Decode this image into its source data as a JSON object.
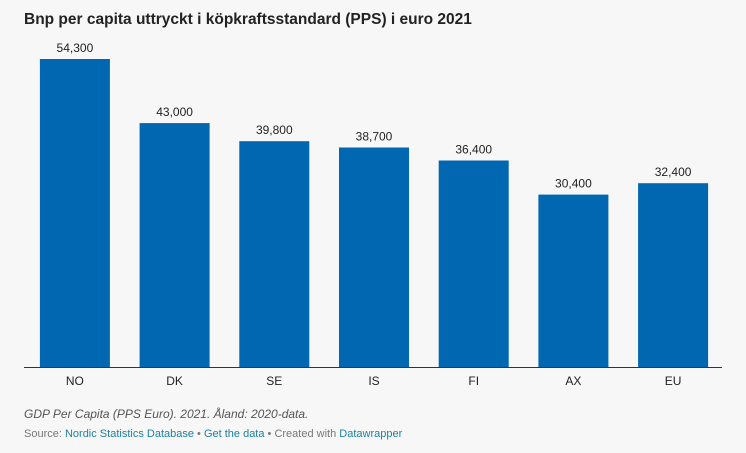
{
  "chart_data": {
    "type": "bar",
    "title": "Bnp per capita uttryckt i köpkraftsstandard (PPS) i euro 2021",
    "categories": [
      "NO",
      "DK",
      "SE",
      "IS",
      "FI",
      "AX",
      "EU"
    ],
    "values": [
      54300,
      43000,
      39800,
      38700,
      36400,
      30400,
      32400
    ],
    "value_labels": [
      "54,300",
      "43,000",
      "39,800",
      "38,700",
      "36,400",
      "30,400",
      "32,400"
    ],
    "xlabel": "",
    "ylabel": "",
    "ylim": [
      0,
      54300
    ],
    "grid": false,
    "bar_color": "#0167b1"
  },
  "footer": {
    "note": "GDP Per Capita (PPS Euro). 2021. Åland: 2020-data.",
    "source_prefix": "Source: ",
    "source_link": "Nordic Statistics Database",
    "separator1": " • ",
    "data_link": "Get the data",
    "separator2": " • Created with ",
    "tool_link": "Datawrapper"
  }
}
